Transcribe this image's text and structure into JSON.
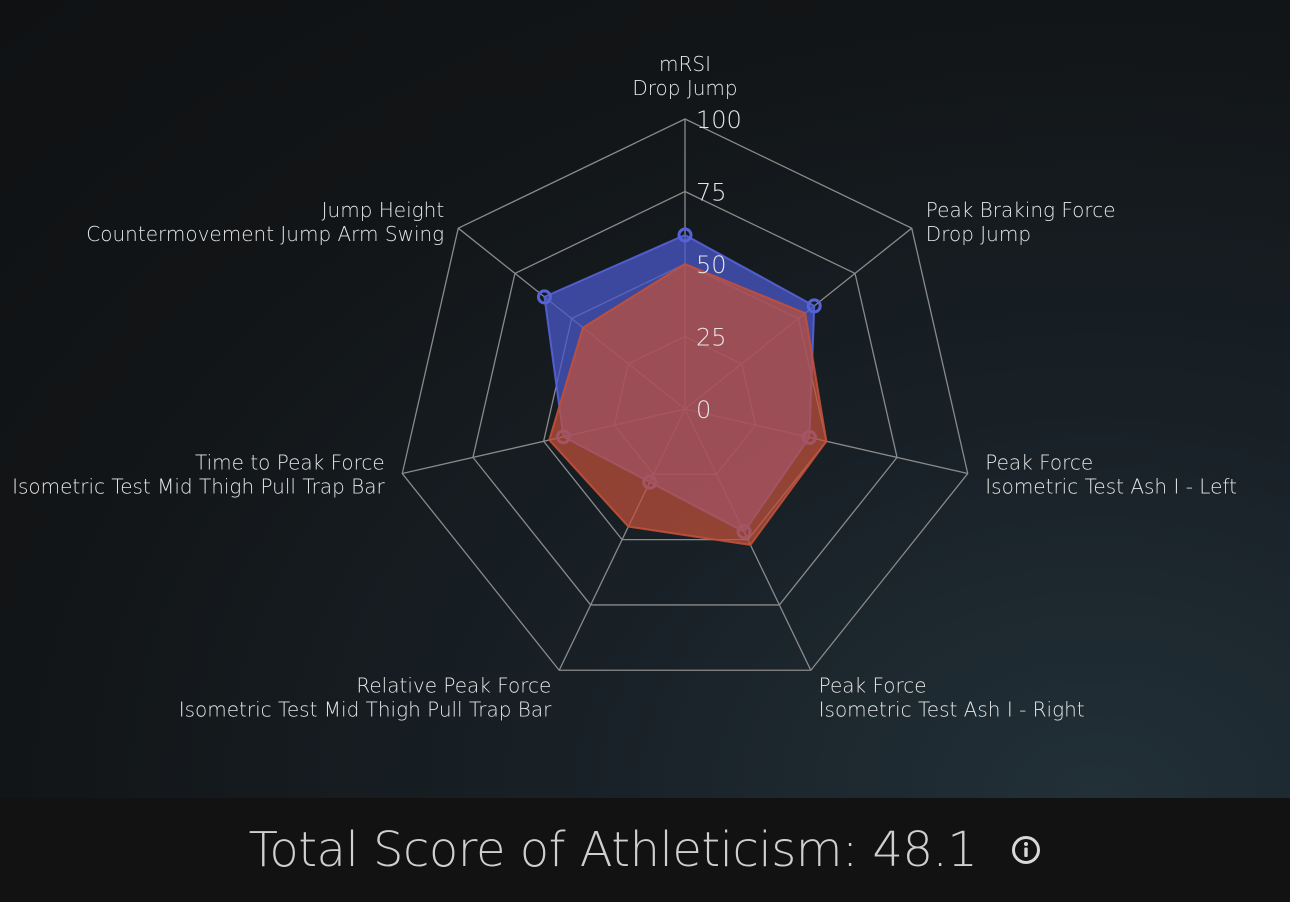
{
  "chart_data": {
    "type": "radar",
    "axes": [
      {
        "line1": "mRSI",
        "line2": "Drop Jump"
      },
      {
        "line1": "Peak Braking Force",
        "line2": "Drop Jump"
      },
      {
        "line1": "Peak Force",
        "line2": "Isometric Test Ash I - Left"
      },
      {
        "line1": "Peak Force",
        "line2": "Isometric Test Ash I - Right"
      },
      {
        "line1": "Relative Peak Force",
        "line2": "Isometric Test Mid Thigh Pull Trap Bar"
      },
      {
        "line1": "Time to Peak Force",
        "line2": "Isometric Test Mid Thigh Pull Trap Bar"
      },
      {
        "line1": "Jump Height",
        "line2": "Countermovement Jump Arm Swing"
      }
    ],
    "ticks": [
      "0",
      "25",
      "50",
      "75",
      "100"
    ],
    "range": [
      0,
      100
    ],
    "series": [
      {
        "values": [
          60,
          57,
          44,
          47,
          28,
          43,
          62
        ],
        "fill": "#4a58c8",
        "stroke": "#5563d6",
        "markers": true
      },
      {
        "values": [
          50,
          53,
          50,
          52,
          45,
          48,
          45
        ],
        "fill": "#c2503a",
        "stroke": "#c2503a",
        "markers": false
      }
    ],
    "grid_color": "#8a8a8a"
  },
  "footer": {
    "total_label": "Total Score of Athleticism: 48.1",
    "info_icon": "info-circle-icon"
  }
}
